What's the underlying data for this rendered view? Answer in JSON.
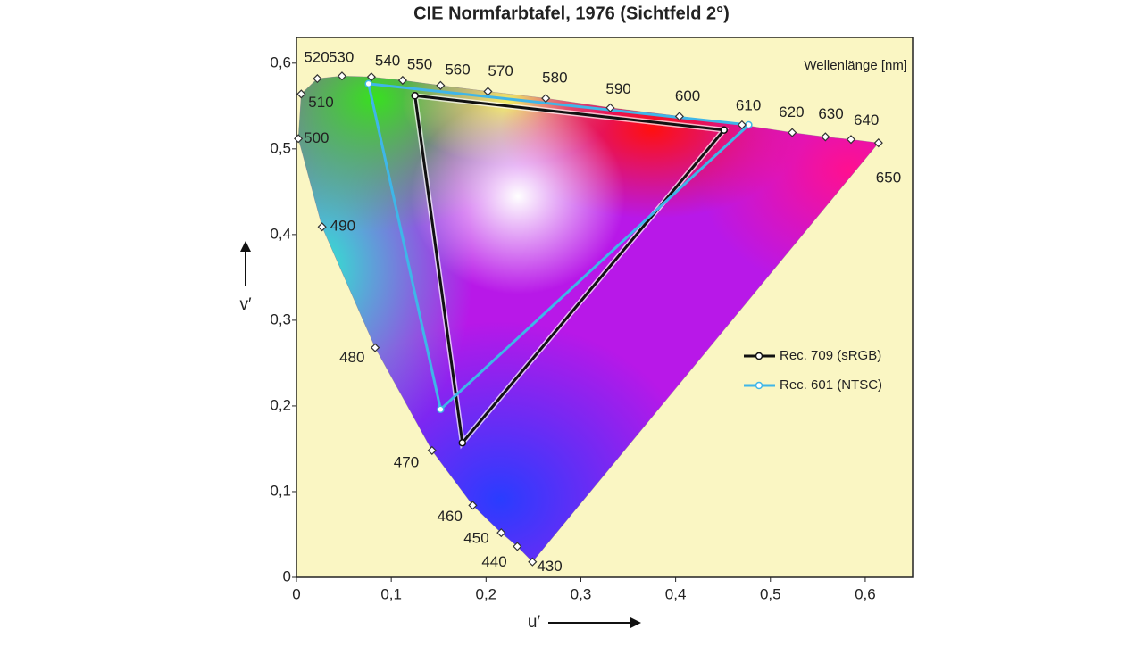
{
  "chart_data": {
    "type": "chromaticity",
    "title": "CIE Normfarbtafel, 1976 (Sichtfeld 2°)",
    "x_label": "u′",
    "y_label": "v′",
    "locus_title": "Wellenlänge [nm]",
    "xlim": [
      0,
      0.65
    ],
    "ylim": [
      0,
      0.63
    ],
    "xticks": [
      0,
      {
        "value": 0.1,
        "label": "0,1"
      },
      {
        "value": 0.2,
        "label": "0,2"
      },
      {
        "value": 0.3,
        "label": "0,3"
      },
      {
        "value": 0.4,
        "label": "0,4"
      },
      {
        "value": 0.5,
        "label": "0,5"
      },
      {
        "value": 0.6,
        "label": "0,6"
      }
    ],
    "yticks": [
      0,
      {
        "value": 0.1,
        "label": "0,1"
      },
      {
        "value": 0.2,
        "label": "0,2"
      },
      {
        "value": 0.3,
        "label": "0,3"
      },
      {
        "value": 0.4,
        "label": "0,4"
      },
      {
        "value": 0.5,
        "label": "0,5"
      },
      {
        "value": 0.6,
        "label": "0,6"
      }
    ],
    "spectral_locus": {
      "labels": [
        "430",
        "440",
        "450",
        "460",
        "470",
        "480",
        "490",
        "500",
        "510",
        "520",
        "530",
        "540",
        "550",
        "560",
        "570",
        "580",
        "590",
        "600",
        "610",
        "620",
        "630",
        "640",
        "650"
      ],
      "x": [
        0.249,
        0.233,
        0.216,
        0.186,
        0.143,
        0.083,
        0.027,
        0.002,
        0.005,
        0.022,
        0.048,
        0.079,
        0.112,
        0.152,
        0.202,
        0.263,
        0.331,
        0.404,
        0.47,
        0.523,
        0.558,
        0.585,
        0.614
      ],
      "values": [
        0.018,
        0.036,
        0.052,
        0.084,
        0.148,
        0.268,
        0.409,
        0.512,
        0.564,
        0.582,
        0.585,
        0.584,
        0.58,
        0.574,
        0.567,
        0.559,
        0.548,
        0.538,
        0.528,
        0.519,
        0.514,
        0.511,
        0.507
      ]
    },
    "series": [
      {
        "name": "Rec. 709 (sRGB)",
        "color": "#111111",
        "x": [
          0.125,
          0.451,
          0.175
        ],
        "values": [
          0.562,
          0.522,
          0.157
        ]
      },
      {
        "name": "Rec. 601 (NTSC)",
        "color": "#3fb6e8",
        "x": [
          0.076,
          0.477,
          0.152
        ],
        "values": [
          0.576,
          0.528,
          0.196
        ]
      }
    ]
  }
}
